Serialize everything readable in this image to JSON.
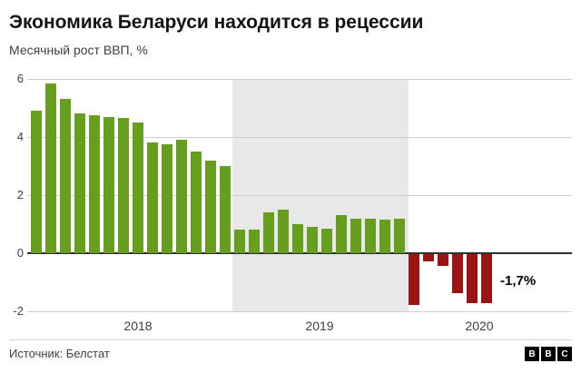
{
  "header": {
    "title": "Экономика Беларуси находится в рецессии",
    "subtitle": "Месячный рост ВВП, %"
  },
  "footer": {
    "source": "Источник: Белстат",
    "logo_letters": [
      "B",
      "B",
      "C"
    ]
  },
  "chart_data": {
    "type": "bar",
    "title": "Экономика Беларуси находится в рецессии",
    "subtitle": "Месячный рост ВВП, %",
    "ylabel": "Месячный рост ВВП, %",
    "xlabel": "",
    "ylim": [
      -2,
      6
    ],
    "yticks": [
      6,
      4,
      2,
      0,
      -2
    ],
    "values": [
      4.9,
      5.85,
      5.3,
      4.8,
      4.75,
      4.7,
      4.65,
      4.5,
      3.8,
      3.75,
      3.9,
      3.5,
      3.2,
      3.0,
      0.8,
      0.8,
      1.4,
      1.5,
      1.0,
      0.9,
      0.85,
      1.3,
      1.2,
      1.2,
      1.15,
      1.2,
      -1.75,
      -0.25,
      -0.4,
      -1.35,
      -1.7,
      -1.7
    ],
    "xticks": [
      {
        "label": "2018",
        "index_center": 7
      },
      {
        "label": "2019",
        "index_center": 19.5
      },
      {
        "label": "2020",
        "index_center": 30.5
      }
    ],
    "shaded_region": {
      "start_index": 14,
      "end_index": 25,
      "label": "2019"
    },
    "annotation": {
      "text": "-1,7%",
      "bar_index": 31,
      "value_anchor": -1
    },
    "colors": {
      "positive": "#689e1d",
      "negative": "#9a1414",
      "band": "#e8e8e8"
    },
    "grid": true,
    "legend": "none"
  }
}
